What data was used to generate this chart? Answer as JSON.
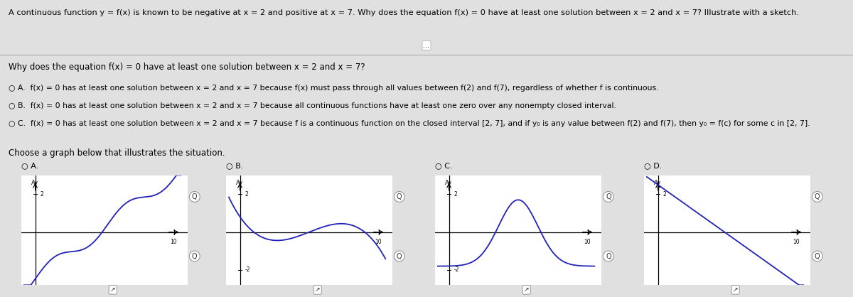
{
  "title": "A continuous function y = f(x) is known to be negative at x = 2 and positive at x = 7. Why does the equation f(x) = 0 have at least one solution between x = 2 and x = 7? Illustrate with a sketch.",
  "question": "Why does the equation f(x) = 0 have at least one solution between x = 2 and x = 7?",
  "choices": [
    "A.  f(x) = 0 has at least one solution between x = 2 and x = 7 because f(x) must pass through all values between f(2) and f(7), regardless of whether f is continuous.",
    "B.  f(x) = 0 has at least one solution between x = 2 and x = 7 because all continuous functions have at least one zero over any nonempty closed interval.",
    "C.  f(x) = 0 has at least one solution between x = 2 and x = 7 because f is a continuous function on the closed interval [2, 7], and if y₀ is any value between f(2) and f(7), then y₀ = f(c) for some c in [2, 7]."
  ],
  "graph_label": "Choose a graph below that illustrates the situation.",
  "graph_titles": [
    "A.",
    "B.",
    "C.",
    "D."
  ],
  "background_color": "#e0e0e0",
  "text_color": "#000000",
  "line_color": "#2222bb",
  "xlim": [
    -1,
    11
  ],
  "ylim": [
    -2.8,
    3.0
  ],
  "separator_y": 0.8
}
